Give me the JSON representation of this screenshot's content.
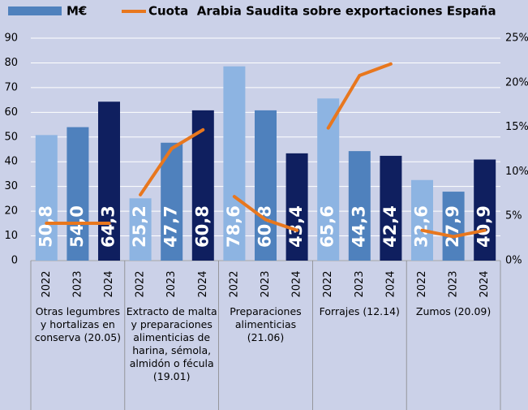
{
  "chart_data": {
    "type": "bar",
    "categories": [
      "2022",
      "2023",
      "2024",
      "2022",
      "2023",
      "2024",
      "2022",
      "2023",
      "2024",
      "2022",
      "2023",
      "2024",
      "2022",
      "2023",
      "2024"
    ],
    "groups": [
      "Otras legumbres y hortalizas en conserva (20.05)",
      "Extracto de malta y preparaciones alimenticias de harina, sémola, almidón o fécula (19.01)",
      "Preparaciones alimenticias (21.06)",
      "Forrajes (12.14)",
      "Zumos (20.09)"
    ],
    "series": [
      {
        "name": "M€",
        "colors": [
          "#8db4e2",
          "#4f81bd",
          "#0f1f5f"
        ],
        "legend_color": "#4f81bd",
        "values": [
          50.8,
          54.0,
          64.3,
          25.2,
          47.7,
          60.8,
          78.6,
          60.8,
          43.4,
          65.6,
          44.3,
          42.4,
          32.6,
          27.9,
          40.9
        ],
        "value_labels": [
          "50,8",
          "54,0",
          "64,3",
          "25,2",
          "47,7",
          "60,8",
          "78,6",
          "60,8",
          "43,4",
          "65,6",
          "44,3",
          "42,4",
          "32,6",
          "27,9",
          "40,9"
        ]
      },
      {
        "name": "Cuota  Arabia Saudita sobre exportaciones España",
        "type": "line",
        "axis": "y2",
        "color": "#e8771e",
        "values": [
          4.2,
          4.2,
          4.2,
          7.4,
          12.6,
          14.7,
          7.2,
          4.6,
          3.4,
          14.9,
          20.8,
          22.1,
          3.4,
          2.7,
          3.4
        ]
      }
    ],
    "ylim": [
      0,
      90
    ],
    "yticks": [
      0,
      10,
      20,
      30,
      40,
      50,
      60,
      70,
      80,
      90
    ],
    "y2lim": [
      0,
      25
    ],
    "y2ticks": [
      {
        "value": 0,
        "label": "0%"
      },
      {
        "value": 5,
        "label": "5%"
      },
      {
        "value": 10,
        "label": "10%"
      },
      {
        "value": 15,
        "label": "15%"
      },
      {
        "value": 20,
        "label": "20%"
      },
      {
        "value": 25,
        "label": "25%"
      }
    ],
    "grid": true,
    "legend": "top"
  }
}
